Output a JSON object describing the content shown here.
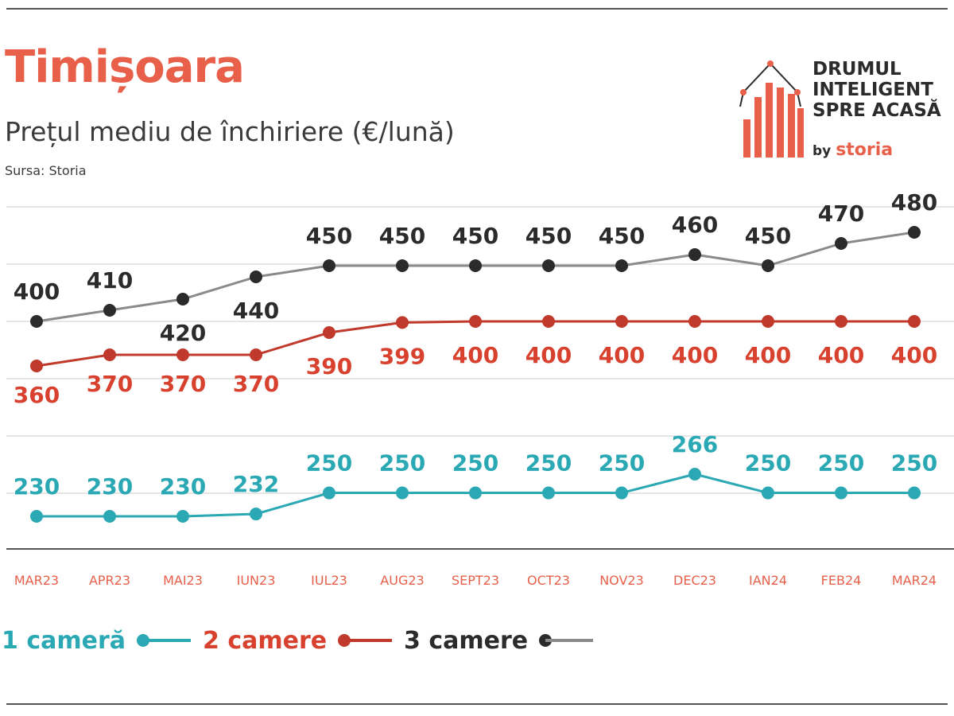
{
  "header": {
    "title": "Timișoara",
    "subtitle": "Prețul mediu de închiriere (€/lună)",
    "source": "Sursa: Storia"
  },
  "logo": {
    "line1": "DRUMUL",
    "line2": "INTELIGENT",
    "line3": "SPRE ACASĂ",
    "by": "by",
    "brand": "storia"
  },
  "legend": {
    "items": [
      {
        "label": "1 cameră",
        "color": "#2aa8b4"
      },
      {
        "label": "2 camere",
        "color": "#c0392b"
      },
      {
        "label": "3 camere",
        "color": "#2b2b2b"
      }
    ]
  },
  "chart_data": {
    "type": "line",
    "title": "Timișoara",
    "subtitle": "Prețul mediu de închiriere (€/lună)",
    "xlabel": "",
    "ylabel": "",
    "categories": [
      "MAR23",
      "APR23",
      "MAI23",
      "IUN23",
      "IUL23",
      "AUG23",
      "SEPT23",
      "OCT23",
      "NOV23",
      "DEC23",
      "IAN24",
      "FEB24",
      "MAR24"
    ],
    "series": [
      {
        "name": "1 cameră",
        "color": "#2aa8b4",
        "label_color": "#2aa8b4",
        "label_pos": "above",
        "values": [
          230,
          230,
          230,
          232,
          250,
          250,
          250,
          250,
          250,
          266,
          250,
          250,
          250
        ]
      },
      {
        "name": "2 camere",
        "color": "#c0392b",
        "label_color": "#d9412f",
        "label_pos": "below",
        "values": [
          360,
          370,
          370,
          370,
          390,
          399,
          400,
          400,
          400,
          400,
          400,
          400,
          400
        ]
      },
      {
        "name": "3 camere",
        "color": "#2b2b2b",
        "line_color": "#8a8a8a",
        "label_color": "#2b2b2b",
        "label_pos": "above",
        "values": [
          400,
          410,
          420,
          440,
          450,
          450,
          450,
          450,
          450,
          460,
          450,
          470,
          480
        ]
      }
    ],
    "grid": true,
    "legend_position": "bottom-left",
    "tick_color": "#e8604a"
  }
}
